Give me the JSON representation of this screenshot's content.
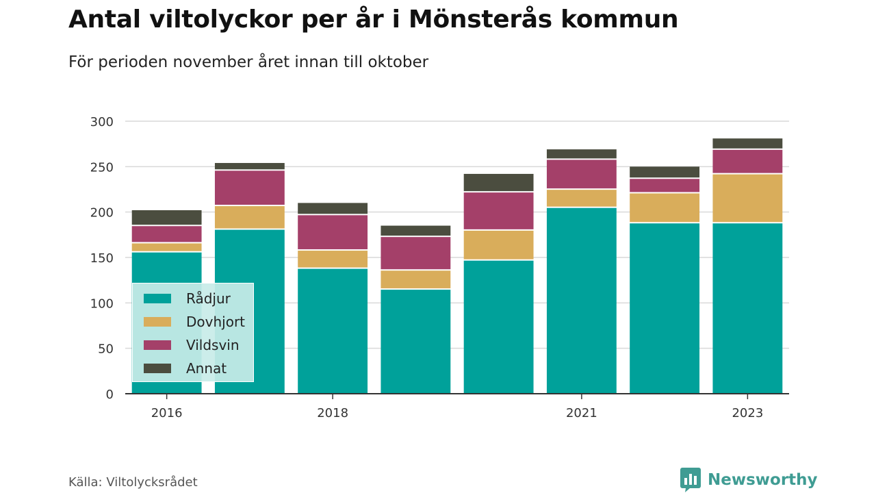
{
  "header": {
    "title": "Antal viltolyckor per år i Mönsterås kommun",
    "subtitle": "För perioden november året innan till oktober"
  },
  "footer": {
    "source": "Källa: Viltolycksrådet",
    "brand": "Newsworthy",
    "brand_icon": "bar-chart-speech-icon",
    "brand_color": "#3f9c93"
  },
  "chart_data": {
    "type": "bar",
    "stacked": true,
    "categories": [
      "2016",
      "2017",
      "2018",
      "2019",
      "2020",
      "2021",
      "2022",
      "2023"
    ],
    "x_tick_labels": [
      "2016",
      "",
      "2018",
      "",
      "",
      "2021",
      "",
      "2023"
    ],
    "series": [
      {
        "name": "Rådjur",
        "color": "#00a19a",
        "values": [
          157,
          182,
          139,
          116,
          148,
          206,
          189,
          189
        ]
      },
      {
        "name": "Dovhjort",
        "color": "#d9ad5b",
        "values": [
          10,
          26,
          20,
          21,
          33,
          20,
          33,
          54
        ]
      },
      {
        "name": "Vildsvin",
        "color": "#a44069",
        "values": [
          19,
          39,
          39,
          37,
          42,
          33,
          16,
          27
        ]
      },
      {
        "name": "Annat",
        "color": "#4b4d3f",
        "values": [
          16,
          7,
          12,
          11,
          19,
          10,
          12,
          11
        ]
      }
    ],
    "ylim": [
      0,
      300
    ],
    "yticks": [
      0,
      50,
      100,
      150,
      200,
      250,
      300
    ],
    "grid": true,
    "legend_position": "bottom-left-inside"
  }
}
